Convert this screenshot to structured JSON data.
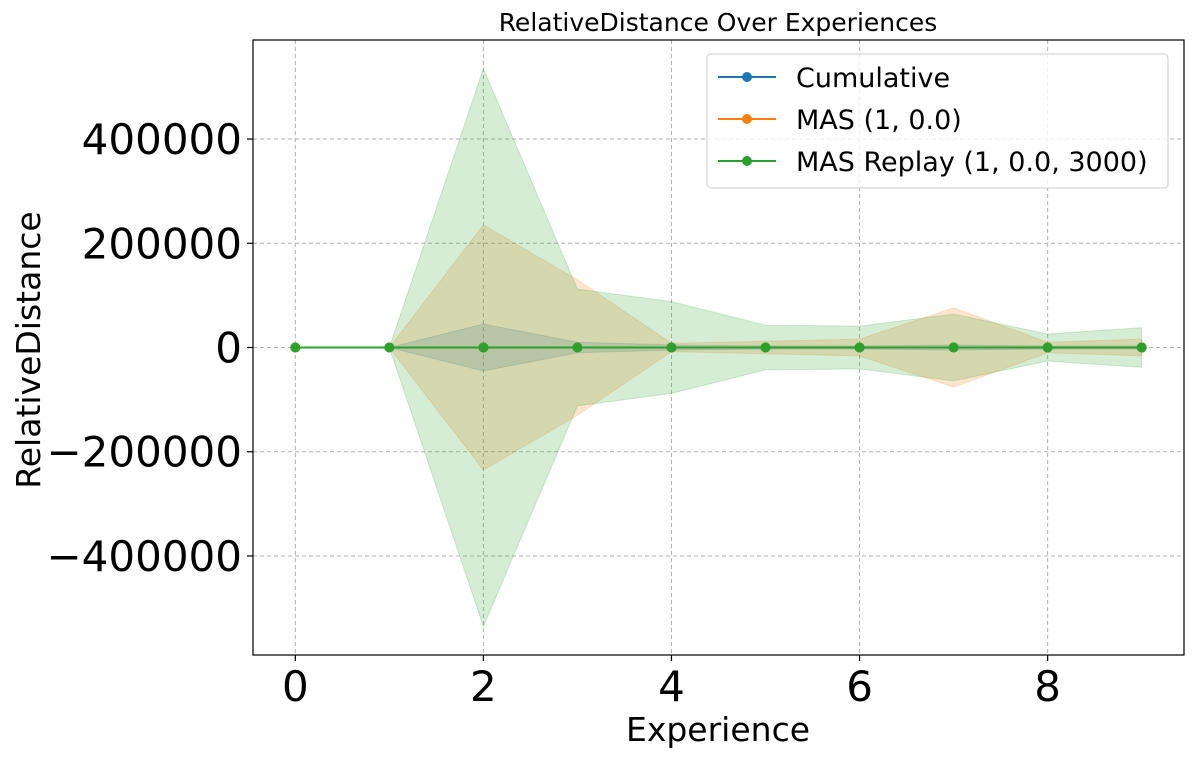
{
  "chart_data": {
    "type": "line",
    "title": "RelativeDistance Over Experiences",
    "xlabel": "Experience",
    "ylabel": "RelativeDistance",
    "xlim": [
      -0.45,
      9.45
    ],
    "ylim": [
      -590000,
      590000
    ],
    "xticks": [
      0,
      2,
      4,
      6,
      8
    ],
    "yticks": [
      -400000,
      -200000,
      0,
      200000,
      400000
    ],
    "ytick_labels": [
      "−400000",
      "−200000",
      "0",
      "200000",
      "400000"
    ],
    "grid": true,
    "legend_position": "top-right",
    "x": [
      0,
      1,
      2,
      3,
      4,
      5,
      6,
      7,
      8,
      9
    ],
    "series": [
      {
        "name": "Cumulative",
        "color": "#1f77b4",
        "values": [
          0,
          0,
          0,
          0,
          0,
          0,
          0,
          0,
          0,
          0
        ],
        "band": [
          0,
          0,
          45000,
          10000,
          5000,
          3000,
          3000,
          5000,
          3000,
          3000
        ]
      },
      {
        "name": "MAS (1, 0.0)",
        "color": "#ff7f0e",
        "values": [
          0,
          0,
          0,
          0,
          0,
          0,
          0,
          0,
          0,
          0
        ],
        "band": [
          0,
          0,
          235000,
          130000,
          8000,
          12000,
          16000,
          76000,
          10000,
          16000
        ]
      },
      {
        "name": "MAS Replay (1, 0.0, 3000)",
        "color": "#2ca02c",
        "values": [
          0,
          0,
          0,
          0,
          0,
          0,
          0,
          0,
          0,
          0
        ],
        "band": [
          0,
          0,
          535000,
          112000,
          88000,
          43000,
          41000,
          64000,
          26000,
          38000
        ]
      }
    ]
  }
}
